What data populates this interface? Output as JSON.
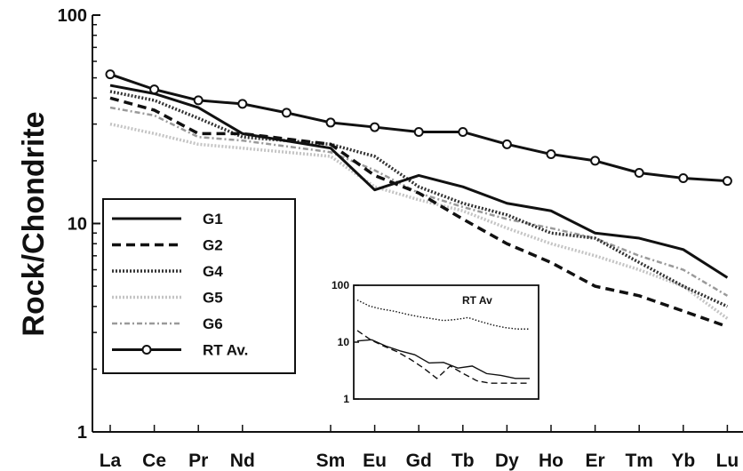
{
  "chart_data": {
    "type": "line",
    "ylabel": "Rock/Chondrite",
    "xlabel": "",
    "yscale": "log",
    "ylim": [
      1,
      100
    ],
    "yticks": [
      "1",
      "10",
      "100"
    ],
    "categories": [
      "La",
      "Ce",
      "Pr",
      "Nd",
      "Sm",
      "Eu",
      "Gd",
      "Tb",
      "Dy",
      "Ho",
      "Er",
      "Tm",
      "Yb",
      "Lu"
    ],
    "category_positions": [
      1,
      2,
      3,
      4,
      6,
      7,
      8,
      9,
      10,
      11,
      12,
      13,
      14,
      15
    ],
    "grid": false,
    "legend_position": "lower-left",
    "series": [
      {
        "name": "G1",
        "style": "solid",
        "color": "#111111",
        "x": [
          1,
          2,
          3,
          4,
          6,
          7,
          8,
          9,
          10,
          11,
          12,
          13,
          14,
          15
        ],
        "values": [
          46,
          42,
          36,
          27,
          23,
          14.5,
          17,
          15,
          12.5,
          11.5,
          9,
          8.5,
          7.5,
          5.5
        ]
      },
      {
        "name": "G2",
        "style": "dashed",
        "color": "#111111",
        "x": [
          1,
          2,
          3,
          4,
          6,
          7,
          8,
          9,
          10,
          11,
          12,
          13,
          14,
          15
        ],
        "values": [
          40,
          35,
          27,
          27,
          24,
          17,
          14,
          10.5,
          8,
          6.5,
          5,
          4.5,
          3.8,
          3.2
        ]
      },
      {
        "name": "G4",
        "style": "dotted",
        "color": "#333333",
        "x": [
          1,
          2,
          3,
          4,
          6,
          7,
          8,
          9,
          10,
          11,
          12,
          13,
          14,
          15
        ],
        "values": [
          43,
          39,
          32,
          26,
          24,
          21,
          15,
          12.5,
          11,
          9,
          8.5,
          6.5,
          5,
          4
        ]
      },
      {
        "name": "G5",
        "style": "dotted",
        "color": "#c4c4c4",
        "x": [
          1,
          2,
          3,
          4,
          6,
          7,
          8,
          9,
          10,
          11,
          12,
          13,
          14,
          15
        ],
        "values": [
          30,
          27,
          24,
          23,
          21,
          15,
          13,
          11.5,
          9.5,
          8,
          7,
          6,
          5,
          3.5
        ]
      },
      {
        "name": "G6",
        "style": "dash-dot",
        "color": "#9a9a9a",
        "x": [
          1,
          2,
          3,
          4,
          6,
          7,
          8,
          9,
          10,
          11,
          12,
          13,
          14,
          15
        ],
        "values": [
          36,
          33,
          26,
          25,
          22,
          18,
          14,
          12,
          10.5,
          9.5,
          8.5,
          7,
          6,
          4.5
        ]
      },
      {
        "name": "RT Av.",
        "style": "solid-circles",
        "color": "#111111",
        "x": [
          1,
          2,
          3,
          4,
          5,
          6,
          7,
          8,
          9,
          10,
          11,
          12,
          13,
          14,
          15
        ],
        "values": [
          52,
          44,
          39,
          37.5,
          34,
          30.5,
          29,
          27.5,
          27.5,
          24,
          21.5,
          20,
          17.5,
          16.5,
          16
        ]
      }
    ],
    "inset": {
      "type": "line",
      "yscale": "log",
      "ylim": [
        1,
        100
      ],
      "yticks": [
        "1",
        "10",
        "100"
      ],
      "annotation": "RT  Av",
      "series": [
        {
          "style": "dotted",
          "values": [
            55,
            43,
            38,
            35,
            31,
            28,
            26,
            24,
            25,
            27,
            23,
            20,
            18,
            17,
            17
          ]
        },
        {
          "style": "solid",
          "values": [
            10.5,
            11,
            8.5,
            7,
            6,
            4.3,
            4.4,
            3.5,
            3.8,
            2.8,
            2.6,
            2.3,
            2.3
          ]
        },
        {
          "style": "dashed",
          "values": [
            16,
            11,
            8.5,
            6.8,
            5,
            3.5,
            2.3,
            3.8,
            2.8,
            2.1,
            1.9,
            1.9,
            1.9,
            1.9
          ]
        }
      ]
    }
  }
}
